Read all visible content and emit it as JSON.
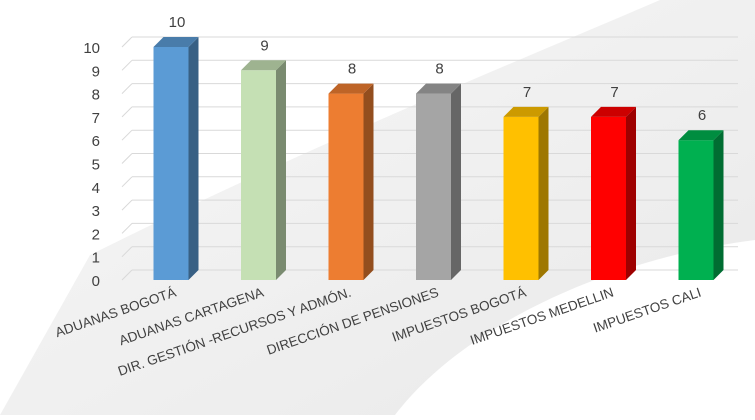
{
  "chart_data": {
    "type": "bar",
    "title": "",
    "xlabel": "",
    "ylabel": "",
    "ylim": [
      0,
      10
    ],
    "yticks": [
      0,
      1,
      2,
      3,
      4,
      5,
      6,
      7,
      8,
      9,
      10
    ],
    "grid": true,
    "style": "3d-columns",
    "categories": [
      "ADUANAS BOGOTÁ",
      "ADUANAS CARTAGENA",
      "DIR. GESTIÓN -RECURSOS Y ADMÓN.",
      "DIRECCIÓN DE PENSIONES",
      "IMPUESTOS BOGOTÁ",
      "IMPUESTOS MEDELLIN",
      "IMPUESTOS CALI"
    ],
    "values": [
      10,
      9,
      8,
      8,
      7,
      7,
      6
    ],
    "data_labels": [
      "10",
      "9",
      "8",
      "8",
      "7",
      "7",
      "6"
    ],
    "colors": [
      "#5B9BD5",
      "#C5E0B4",
      "#ED7D31",
      "#A5A5A5",
      "#FFC000",
      "#FF0000",
      "#00B050"
    ]
  }
}
